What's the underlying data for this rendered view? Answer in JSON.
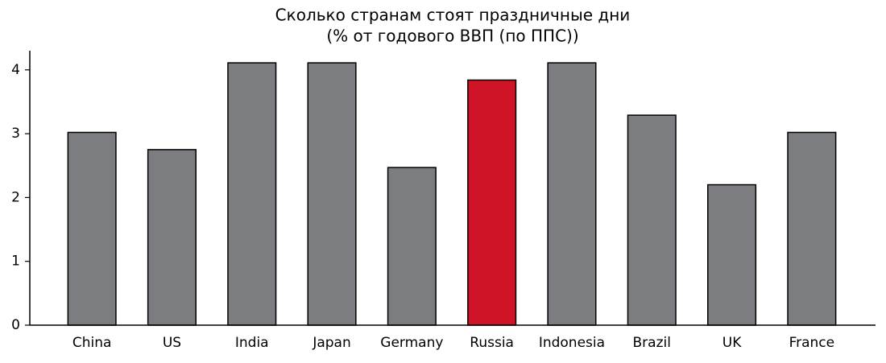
{
  "chart_data": {
    "type": "bar",
    "title": "Сколько странам стоят праздничные дни",
    "subtitle": "(% от годового ВВП (по ППС))",
    "categories": [
      "China",
      "US",
      "India",
      "Japan",
      "Germany",
      "Russia",
      "Indonesia",
      "Brazil",
      "UK",
      "France"
    ],
    "values": [
      3.02,
      2.75,
      4.11,
      4.11,
      2.47,
      3.84,
      4.11,
      3.29,
      2.2,
      3.02
    ],
    "colors": [
      "#7b7d80",
      "#7b7d80",
      "#7b7d80",
      "#7b7d80",
      "#7b7d80",
      "#d01428",
      "#7b7d80",
      "#7b7d80",
      "#7b7d80",
      "#7b7d80"
    ],
    "ylim": [
      0,
      4.3
    ],
    "yticks": [
      0,
      1,
      2,
      3,
      4
    ],
    "grid": false
  }
}
